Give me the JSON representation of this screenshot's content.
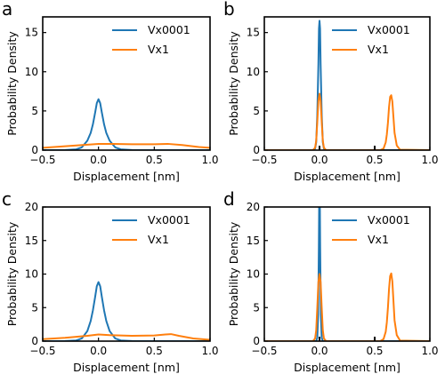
{
  "chart_data": [
    {
      "panel_label": "a",
      "type": "line",
      "xlabel": "Displacement [nm]",
      "ylabel": "Probability Density",
      "xlim": [
        -0.5,
        1.0
      ],
      "ylim": [
        0,
        17
      ],
      "xticks": [
        -0.5,
        0.0,
        0.5,
        1.0
      ],
      "xtick_labels": [
        "−0.5",
        "0.0",
        "0.5",
        "1.0"
      ],
      "yticks": [
        0,
        5,
        10,
        15
      ],
      "ytick_labels": [
        "0",
        "5",
        "10",
        "15"
      ],
      "grid": false,
      "legend_position": "top-right",
      "series": [
        {
          "name": "Vx0001",
          "color": "#1f77b4",
          "x": [
            -0.5,
            -0.3,
            -0.2,
            -0.15,
            -0.1,
            -0.07,
            -0.05,
            -0.03,
            -0.015,
            0.0,
            0.015,
            0.03,
            0.05,
            0.07,
            0.1,
            0.15,
            0.2,
            0.3,
            0.5,
            0.75,
            1.0
          ],
          "y": [
            0.0,
            0.02,
            0.1,
            0.35,
            1.2,
            2.2,
            3.3,
            4.8,
            6.0,
            6.5,
            6.0,
            4.8,
            3.3,
            2.2,
            1.2,
            0.35,
            0.1,
            0.02,
            0.0,
            0.0,
            0.0
          ]
        },
        {
          "name": "Vx1",
          "color": "#ff7f0e",
          "x": [
            -0.5,
            -0.3,
            -0.1,
            0.0,
            0.1,
            0.3,
            0.5,
            0.62,
            0.75,
            0.9,
            1.0
          ],
          "y": [
            0.3,
            0.5,
            0.7,
            0.8,
            0.8,
            0.75,
            0.75,
            0.8,
            0.65,
            0.4,
            0.3
          ]
        }
      ]
    },
    {
      "panel_label": "b",
      "type": "line",
      "xlabel": "Displacement [nm]",
      "ylabel": "Probability Density",
      "xlim": [
        -0.5,
        1.0
      ],
      "ylim": [
        0,
        17
      ],
      "xticks": [
        -0.5,
        0.0,
        0.5,
        1.0
      ],
      "xtick_labels": [
        "−0.5",
        "0.0",
        "0.5",
        "1.0"
      ],
      "yticks": [
        0,
        5,
        10,
        15
      ],
      "ytick_labels": [
        "0",
        "5",
        "10",
        "15"
      ],
      "grid": false,
      "legend_position": "top-right",
      "series": [
        {
          "name": "Vx0001",
          "color": "#1f77b4",
          "x": [
            -0.5,
            -0.06,
            -0.04,
            -0.03,
            -0.02,
            -0.01,
            -0.005,
            0.0,
            0.005,
            0.01,
            0.02,
            0.03,
            0.04,
            0.06,
            1.0
          ],
          "y": [
            0.0,
            0.0,
            0.2,
            1.0,
            4.5,
            11.0,
            15.5,
            16.5,
            15.5,
            11.0,
            4.5,
            1.0,
            0.2,
            0.0,
            0.0
          ],
          "peak_marker": 0.0
        },
        {
          "name": "Vx1",
          "color": "#ff7f0e",
          "x": [
            -0.5,
            -0.06,
            -0.04,
            -0.03,
            -0.02,
            -0.01,
            0.0,
            0.01,
            0.02,
            0.03,
            0.04,
            0.06,
            0.55,
            0.58,
            0.6,
            0.61,
            0.62,
            0.63,
            0.64,
            0.65,
            0.66,
            0.67,
            0.68,
            0.7,
            0.73,
            1.0
          ],
          "y": [
            0.0,
            0.0,
            0.3,
            1.2,
            3.6,
            6.3,
            7.2,
            6.3,
            3.6,
            1.2,
            0.3,
            0.0,
            0.0,
            0.2,
            1.0,
            2.0,
            3.5,
            5.5,
            6.8,
            7.0,
            6.2,
            4.2,
            2.2,
            0.6,
            0.05,
            0.0
          ],
          "peak_marker": 0.5
        }
      ]
    },
    {
      "panel_label": "c",
      "type": "line",
      "xlabel": "Displacement [nm]",
      "ylabel": "Probability Density",
      "xlim": [
        -0.5,
        1.0
      ],
      "ylim": [
        0,
        20
      ],
      "xticks": [
        -0.5,
        0.0,
        0.5,
        1.0
      ],
      "xtick_labels": [
        "−0.5",
        "0.0",
        "0.5",
        "1.0"
      ],
      "yticks": [
        0,
        5,
        10,
        15,
        20
      ],
      "ytick_labels": [
        "0",
        "5",
        "10",
        "15",
        "20"
      ],
      "grid": false,
      "legend_position": "top-right",
      "series": [
        {
          "name": "Vx0001",
          "color": "#1f77b4",
          "x": [
            -0.5,
            -0.3,
            -0.2,
            -0.15,
            -0.1,
            -0.07,
            -0.05,
            -0.03,
            -0.015,
            0.0,
            0.015,
            0.03,
            0.05,
            0.07,
            0.1,
            0.15,
            0.2,
            0.3,
            0.5,
            0.75,
            1.0
          ],
          "y": [
            0.0,
            0.02,
            0.1,
            0.4,
            1.5,
            3.0,
            4.6,
            6.6,
            8.2,
            8.8,
            8.2,
            6.6,
            4.6,
            3.0,
            1.5,
            0.4,
            0.1,
            0.02,
            0.0,
            0.0,
            0.0
          ]
        },
        {
          "name": "Vx1",
          "color": "#ff7f0e",
          "x": [
            -0.5,
            -0.3,
            -0.1,
            0.0,
            0.1,
            0.3,
            0.5,
            0.6,
            0.65,
            0.72,
            0.85,
            1.0
          ],
          "y": [
            0.3,
            0.5,
            0.8,
            1.0,
            0.9,
            0.8,
            0.85,
            1.0,
            1.05,
            0.8,
            0.4,
            0.2
          ]
        }
      ]
    },
    {
      "panel_label": "d",
      "type": "line",
      "xlabel": "Displacement [nm]",
      "ylabel": "Probability Density",
      "xlim": [
        -0.5,
        1.0
      ],
      "ylim": [
        0,
        20
      ],
      "xticks": [
        -0.5,
        0.0,
        0.5,
        1.0
      ],
      "xtick_labels": [
        "−0.5",
        "0.0",
        "0.5",
        "1.0"
      ],
      "yticks": [
        0,
        5,
        10,
        15,
        20
      ],
      "ytick_labels": [
        "0",
        "5",
        "10",
        "15",
        "20"
      ],
      "grid": false,
      "legend_position": "top-right",
      "series": [
        {
          "name": "Vx0001",
          "color": "#1f77b4",
          "x": [
            -0.5,
            -0.03,
            -0.02,
            -0.012,
            -0.006,
            -0.003,
            0.0,
            0.003,
            0.006,
            0.012,
            0.02,
            0.03,
            1.0
          ],
          "y": [
            0.0,
            0.0,
            0.5,
            4.0,
            14.0,
            21.0,
            24.0,
            21.0,
            14.0,
            4.0,
            0.5,
            0.0,
            0.0
          ],
          "peak_marker": 0.0
        },
        {
          "name": "Vx1",
          "color": "#ff7f0e",
          "x": [
            -0.5,
            -0.06,
            -0.04,
            -0.03,
            -0.02,
            -0.01,
            0.0,
            0.01,
            0.02,
            0.03,
            0.04,
            0.06,
            0.55,
            0.58,
            0.6,
            0.61,
            0.62,
            0.63,
            0.64,
            0.65,
            0.66,
            0.67,
            0.68,
            0.7,
            0.73,
            1.0
          ],
          "y": [
            0.0,
            0.0,
            0.4,
            1.6,
            5.0,
            8.8,
            10.0,
            8.8,
            5.0,
            1.6,
            0.4,
            0.0,
            0.0,
            0.3,
            1.4,
            2.8,
            5.0,
            7.8,
            9.7,
            10.1,
            8.9,
            6.0,
            3.1,
            0.9,
            0.08,
            0.0
          ],
          "peak_marker": 0.5
        }
      ]
    }
  ]
}
